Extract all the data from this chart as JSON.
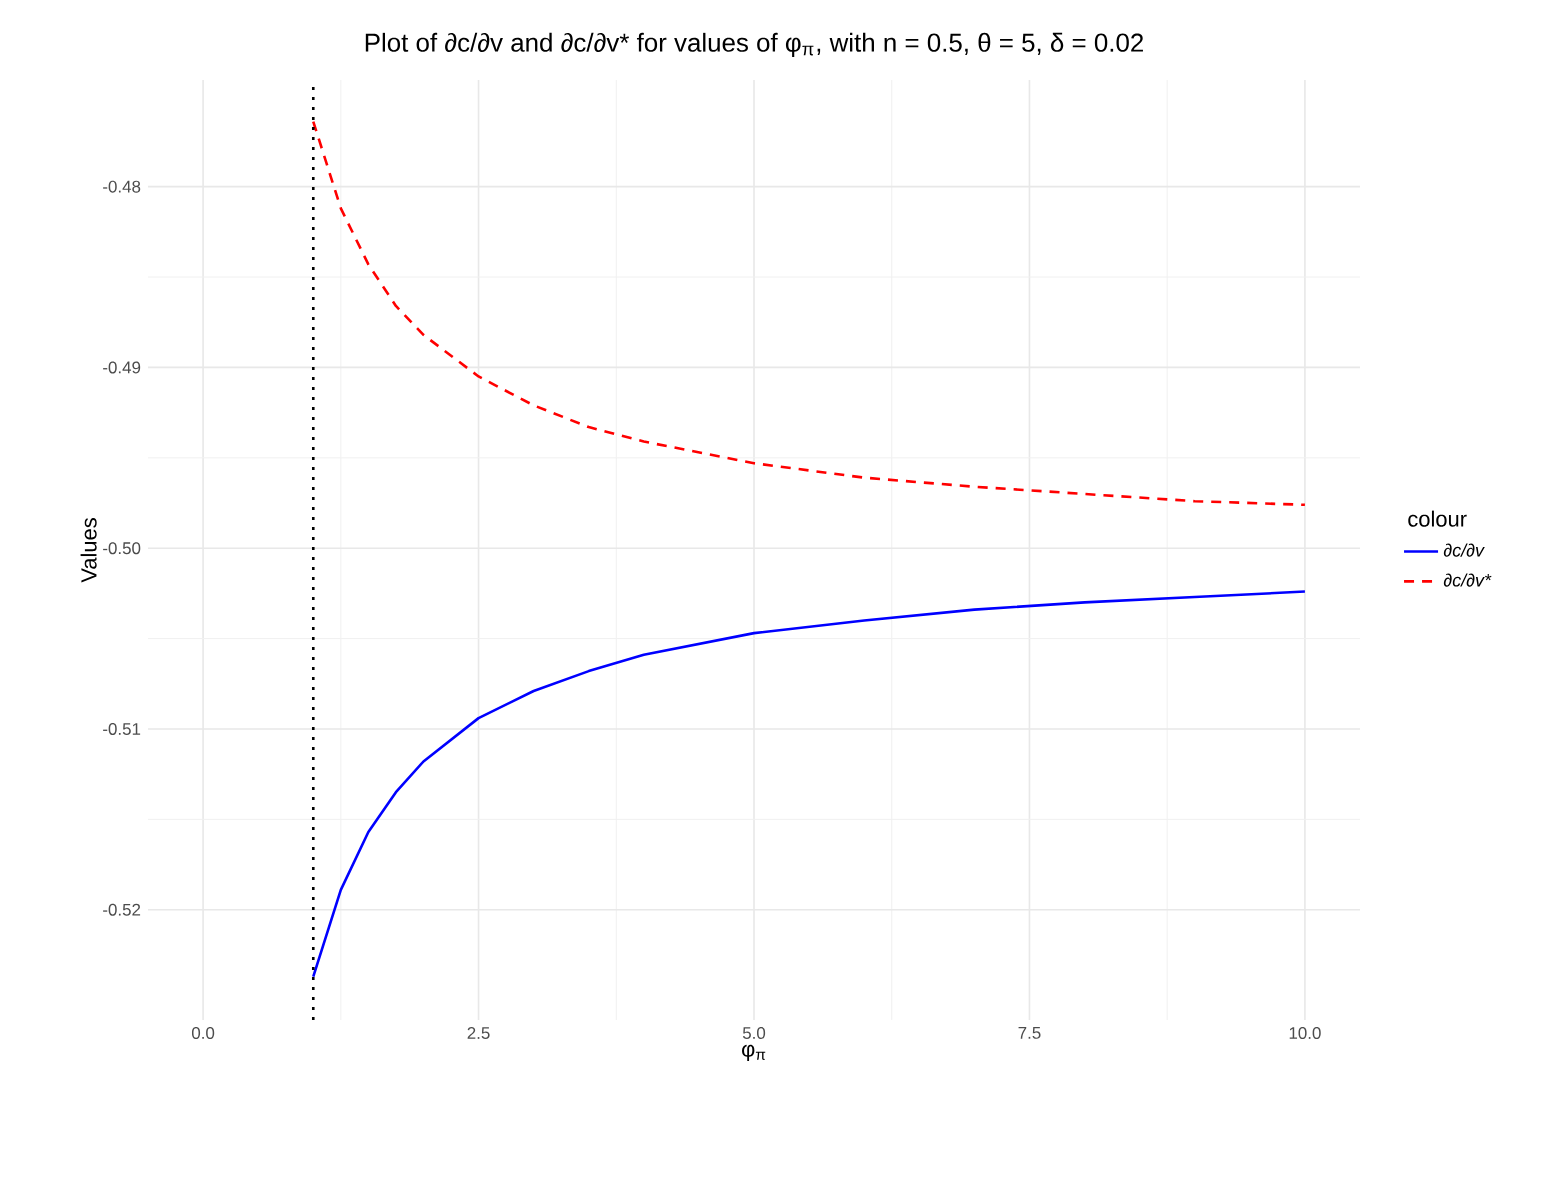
{
  "chart_data": {
    "type": "line",
    "title": "Plot of ∂c/∂v and ∂c/∂v* for values of φ$_{π}$, with n = 0.5, θ = 5, δ = 0.02",
    "xlabel": "φ$_{π}$",
    "ylabel": "Values",
    "legend_title": "colour",
    "x": [
      1,
      1.25,
      1.5,
      1.75,
      2,
      2.5,
      3,
      3.5,
      4,
      5,
      6,
      7,
      8,
      9,
      10
    ],
    "series": [
      {
        "name": "∂c/∂v",
        "color": "#0000ff",
        "line_style": "solid",
        "values": [
          -0.5237,
          -0.5189,
          -0.5157,
          -0.5135,
          -0.5118,
          -0.5094,
          -0.5079,
          -0.5068,
          -0.5059,
          -0.5047,
          -0.504,
          -0.5034,
          -0.503,
          -0.5027,
          -0.5024
        ]
      },
      {
        "name": "∂c/∂v*",
        "color": "#ff0000",
        "line_style": "dashed",
        "values": [
          -0.4764,
          -0.4812,
          -0.4843,
          -0.4866,
          -0.4882,
          -0.4905,
          -0.4921,
          -0.4933,
          -0.4941,
          -0.4953,
          -0.4961,
          -0.4966,
          -0.497,
          -0.4974,
          -0.4976
        ]
      }
    ],
    "xlim": [
      -0.5,
      10.5
    ],
    "ylim": [
      -0.5261,
      -0.4741
    ],
    "xticks": [
      {
        "value": 0,
        "label": "0.0"
      },
      {
        "value": 2.5,
        "label": "2.5"
      },
      {
        "value": 5,
        "label": "5.0"
      },
      {
        "value": 7.5,
        "label": "7.5"
      },
      {
        "value": 10,
        "label": "10.0"
      }
    ],
    "yticks": [
      -0.52,
      -0.51,
      {
        "value": -0.5,
        "label": "-0.50"
      },
      -0.49,
      -0.48
    ],
    "ref_lines": [
      {
        "axis": "x",
        "value": 1,
        "color": "#000000",
        "line_style": "dotted"
      }
    ],
    "grid": true,
    "legend": "right"
  }
}
